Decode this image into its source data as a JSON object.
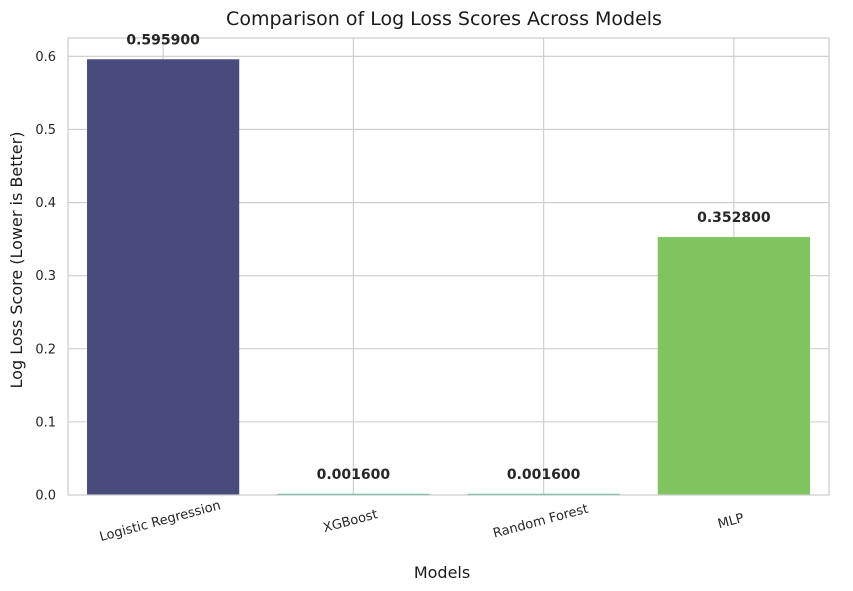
{
  "chart_data": {
    "type": "bar",
    "title": "Comparison of Log Loss Scores Across Models",
    "xlabel": "Models",
    "ylabel": "Log Loss Score (Lower is Better)",
    "categories": [
      "Logistic Regression",
      "XGBoost",
      "Random Forest",
      "MLP"
    ],
    "values": [
      0.5959,
      0.0016,
      0.0016,
      0.3528
    ],
    "data_labels": [
      "0.595900",
      "0.001600",
      "0.001600",
      "0.352800"
    ],
    "colors": [
      "#4a4b7d",
      "#22a384",
      "#2ab07f",
      "#7fc45e"
    ],
    "ylim": [
      0,
      0.625
    ],
    "yticks": [
      0.0,
      0.1,
      0.2,
      0.3,
      0.4,
      0.5,
      0.6
    ],
    "ytick_labels": [
      "0.0",
      "0.1",
      "0.2",
      "0.3",
      "0.4",
      "0.5",
      "0.6"
    ],
    "grid": true,
    "xtick_rotation_deg": -15
  }
}
